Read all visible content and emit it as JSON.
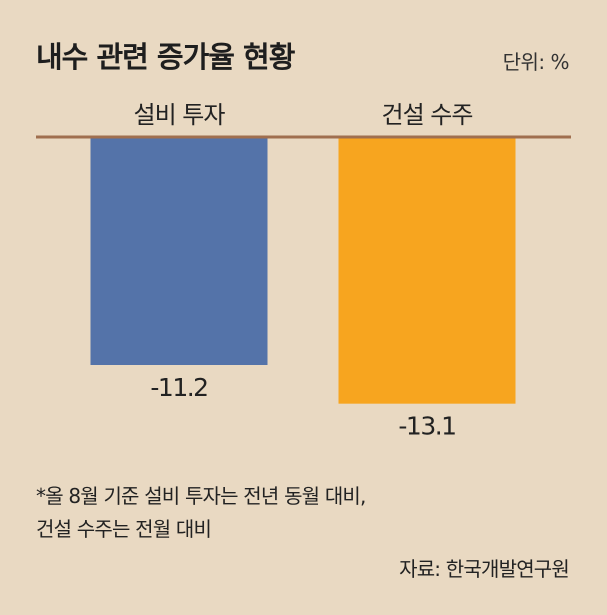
{
  "title": "내수 관련 증가율 현황",
  "unit_label": "단위: %",
  "chart_data": {
    "type": "bar",
    "categories": [
      "설비 투자",
      "건설 수주"
    ],
    "values": [
      -11.2,
      -13.1
    ],
    "value_labels": [
      "-11.2",
      "-13.1"
    ],
    "ylim": [
      -14,
      0
    ],
    "colors": [
      "#5473a9",
      "#f7a51f"
    ],
    "axis_color": "#a06f4f",
    "grid": false
  },
  "note_lines": [
    "*올 8월 기준 설비 투자는 전년 동월 대비,",
    "건설 수주는 전월 대비"
  ],
  "source": "자료: 한국개발연구원"
}
